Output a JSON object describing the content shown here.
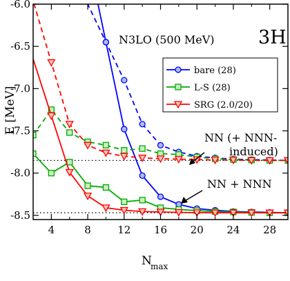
{
  "chart_data": {
    "type": "line",
    "title": "N3LO (500 MeV)",
    "nucleus": "3H",
    "xlabel": "Nmax",
    "ylabel": "E [MeV]",
    "xlim": [
      2,
      30
    ],
    "ylim": [
      -8.55,
      -6.0
    ],
    "x_ticks": [
      4,
      8,
      12,
      16,
      20,
      24,
      28
    ],
    "y_ticks": [
      -8.5,
      -8.0,
      -7.5,
      -7.0,
      -6.5,
      -6.0
    ],
    "y_tick_labels": [
      "-8.5",
      "-8.0",
      "-7.5",
      "-7.0",
      "-6.5",
      "-6.0"
    ],
    "grid": false,
    "legend_position": "upper-right",
    "reference_lines": [
      -7.85,
      -8.47
    ],
    "annotations": {
      "nn_induced_line1": "NN (+ NNN-",
      "nn_induced_line2": "induced)",
      "nn_nnn": "NN + NNN"
    },
    "series": [
      {
        "name": "bare (28)",
        "color": "#0000ff",
        "marker": "circle",
        "group": "NN+NNN",
        "style": "solid",
        "x": [
          10,
          12,
          14,
          16,
          18,
          20,
          22,
          24,
          26,
          28,
          30
        ],
        "y": [
          -6.45,
          -7.48,
          -8.03,
          -8.28,
          -8.37,
          -8.42,
          -8.44,
          -8.455,
          -8.46,
          -8.465,
          -8.47
        ]
      },
      {
        "name": "bare (28)",
        "color": "#0000ff",
        "marker": "circle",
        "group": "NN+NNN-induced",
        "style": "dashed",
        "x": [
          10,
          12,
          14,
          16,
          18,
          20,
          22,
          24,
          26,
          28,
          30
        ],
        "y": [
          -6.45,
          -6.9,
          -7.42,
          -7.67,
          -7.75,
          -7.8,
          -7.82,
          -7.835,
          -7.84,
          -7.845,
          -7.85
        ]
      },
      {
        "name": "L-S (28)",
        "color": "#00aa00",
        "marker": "square",
        "group": "NN+NNN",
        "style": "solid",
        "x": [
          2,
          4,
          6,
          8,
          10,
          12,
          14,
          16,
          18,
          20,
          22,
          24,
          26,
          28,
          30
        ],
        "y": [
          -7.77,
          -8.0,
          -7.87,
          -8.15,
          -8.17,
          -8.34,
          -8.32,
          -8.41,
          -8.43,
          -8.445,
          -8.455,
          -8.46,
          -8.465,
          -8.47,
          -8.47
        ]
      },
      {
        "name": "L-S (28)",
        "color": "#00aa00",
        "marker": "square",
        "group": "NN+NNN-induced",
        "style": "dashed",
        "x": [
          2,
          4,
          6,
          8,
          10,
          12,
          14,
          16,
          18,
          20,
          22,
          24,
          26,
          28,
          30
        ],
        "y": [
          -7.55,
          -7.25,
          -7.52,
          -7.63,
          -7.67,
          -7.73,
          -7.71,
          -7.77,
          -7.78,
          -7.81,
          -7.83,
          -7.84,
          -7.845,
          -7.85,
          -7.85
        ]
      },
      {
        "name": "SRG (2.0/20)",
        "color": "#ff0000",
        "marker": "triangle-down",
        "group": "NN+NNN",
        "style": "solid",
        "x": [
          4,
          6,
          8,
          10,
          12,
          14,
          16,
          18,
          20,
          22,
          24,
          26,
          28,
          30
        ],
        "y": [
          -7.32,
          -7.99,
          -8.27,
          -8.41,
          -8.44,
          -8.455,
          -8.46,
          -8.465,
          -8.468,
          -8.47,
          -8.47,
          -8.47,
          -8.47,
          -8.47
        ]
      },
      {
        "name": "SRG (2.0/20)",
        "color": "#ff0000",
        "marker": "triangle-down",
        "group": "NN+NNN-induced",
        "style": "dashed",
        "x": [
          4,
          6,
          8,
          10,
          12,
          14,
          16,
          18,
          20,
          22,
          24,
          26,
          28,
          30
        ],
        "y": [
          -6.69,
          -7.42,
          -7.67,
          -7.76,
          -7.8,
          -7.82,
          -7.83,
          -7.835,
          -7.84,
          -7.845,
          -7.845,
          -7.85,
          -7.85,
          -7.85
        ]
      }
    ]
  }
}
